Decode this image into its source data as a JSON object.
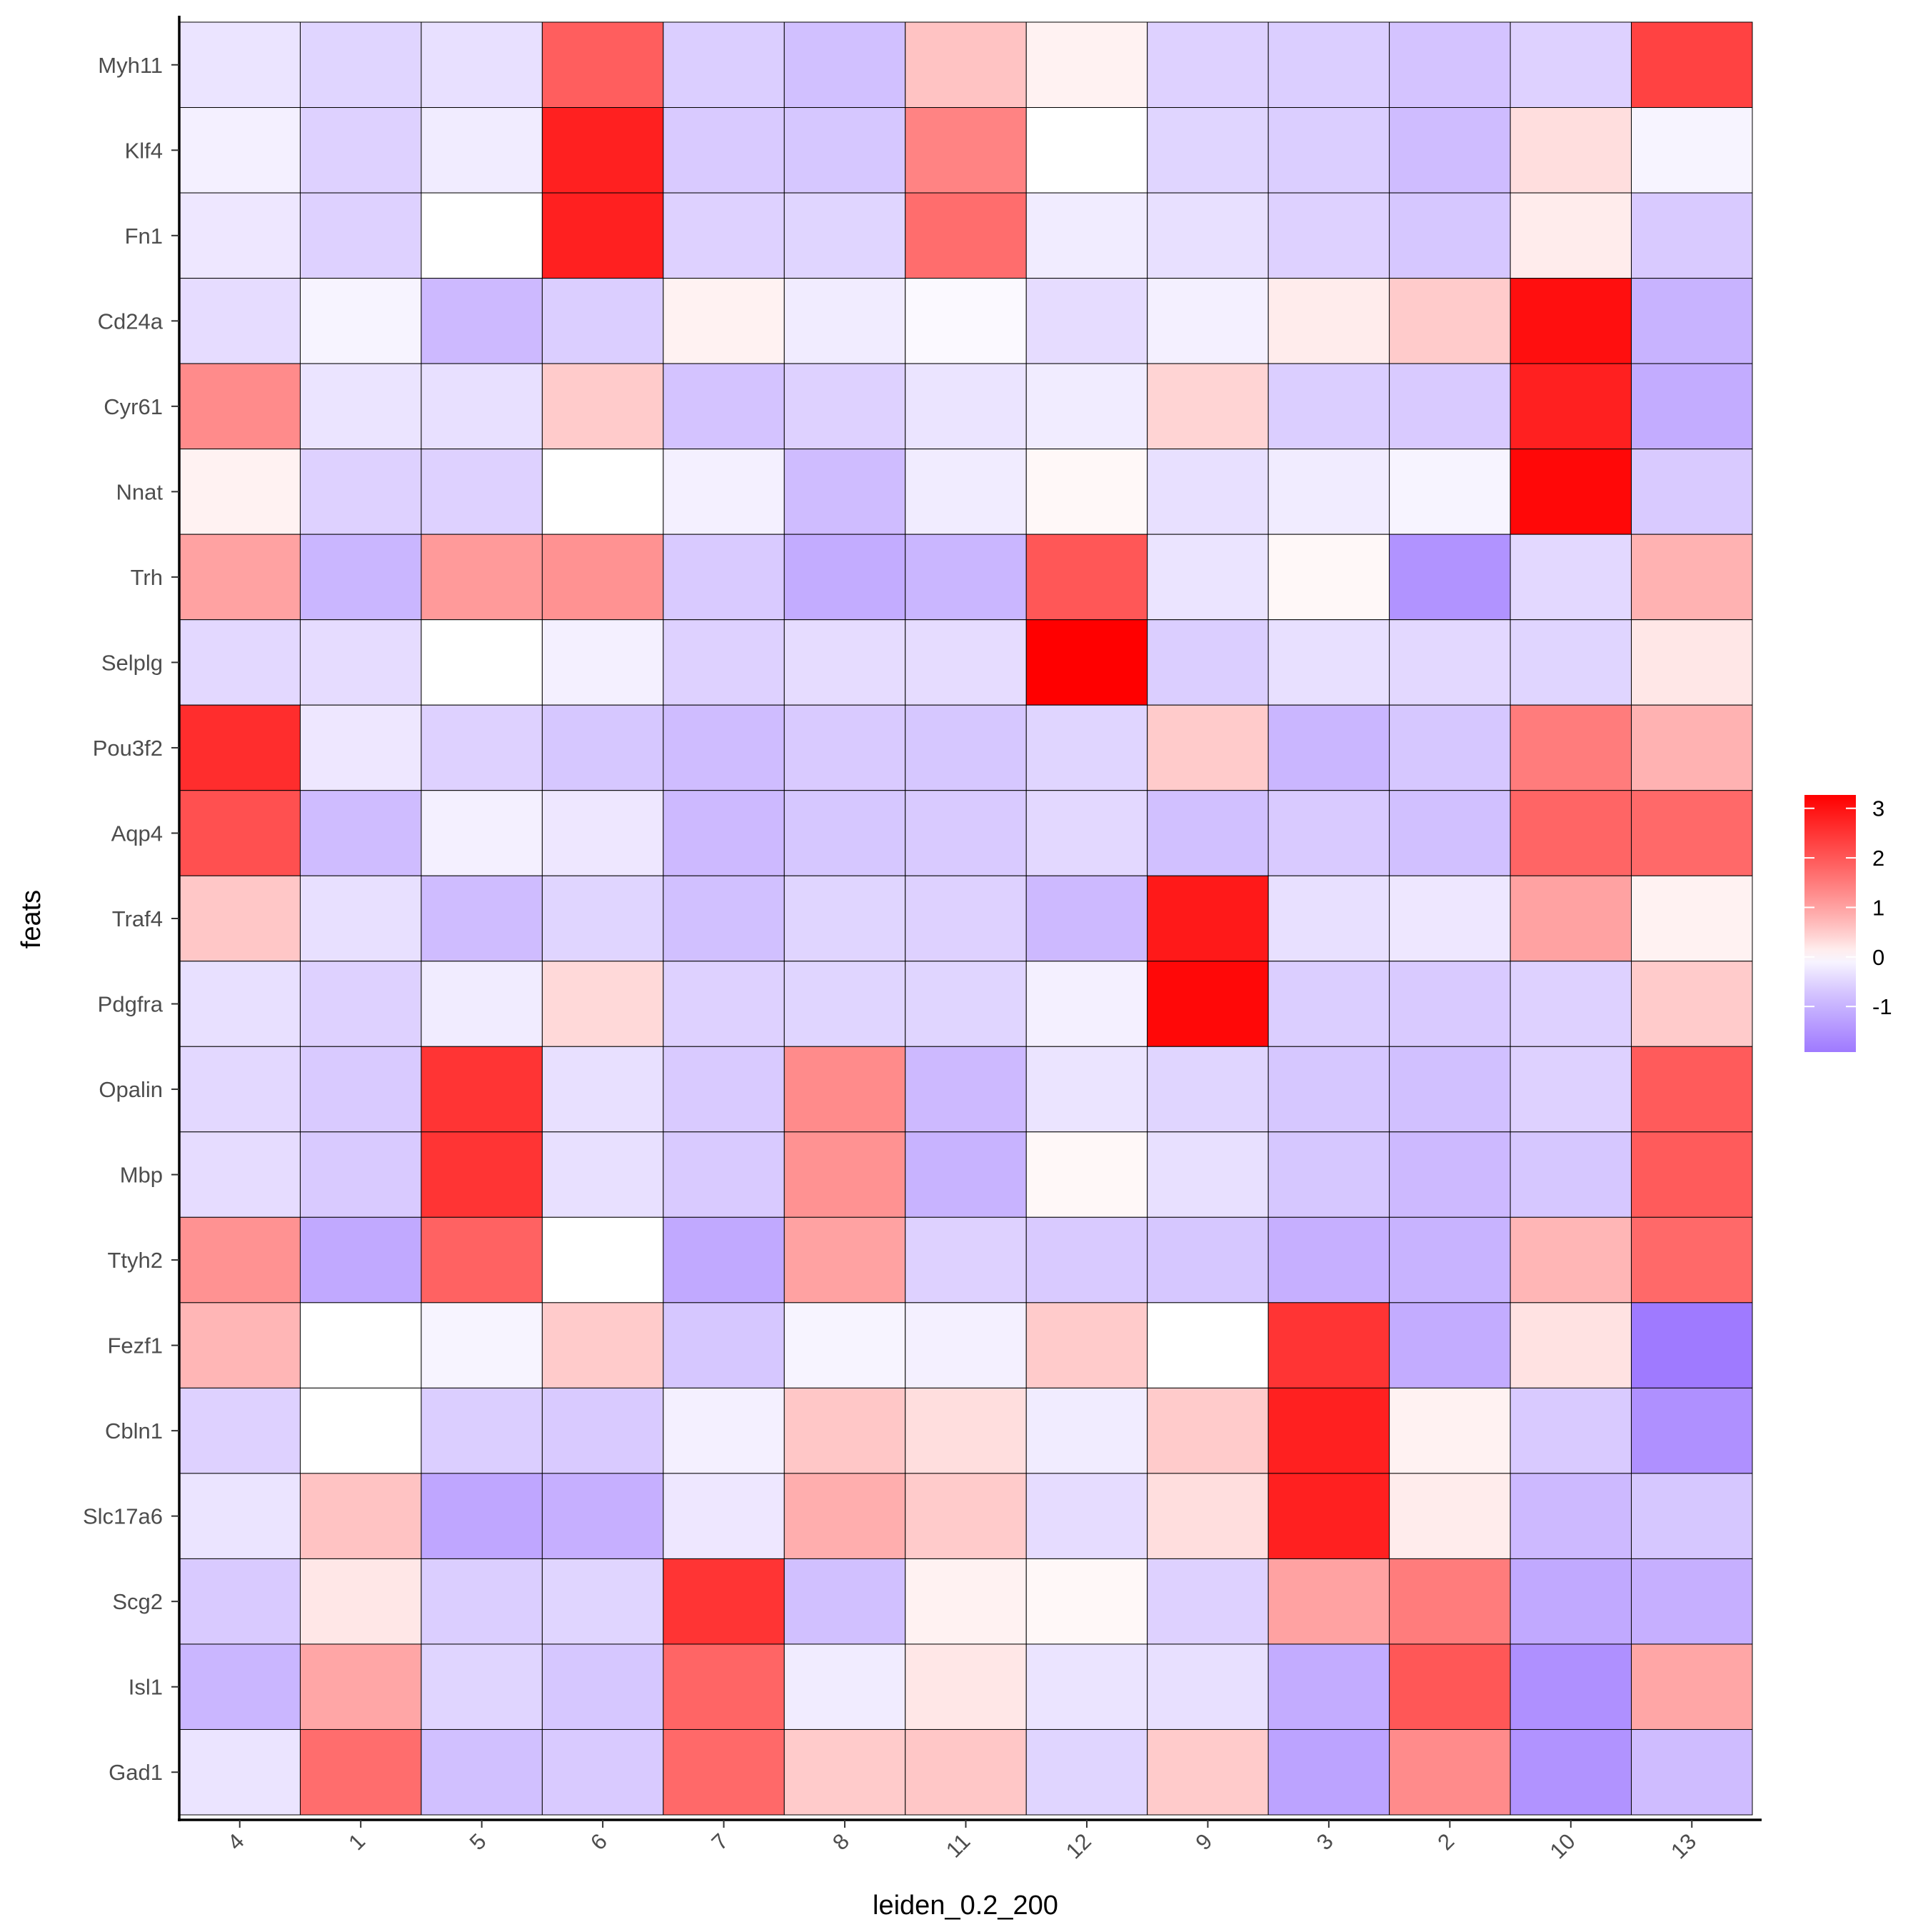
{
  "chart_data": {
    "type": "heatmap",
    "title": "",
    "xlabel": "leiden_0.2_200",
    "ylabel": "feats",
    "columns": [
      "4",
      "1",
      "5",
      "6",
      "7",
      "8",
      "11",
      "12",
      "9",
      "3",
      "2",
      "10",
      "13"
    ],
    "rows": [
      "Myh11",
      "Klf4",
      "Fn1",
      "Cd24a",
      "Cyr61",
      "Nnat",
      "Trh",
      "Selplg",
      "Pou3f2",
      "Aqp4",
      "Traf4",
      "Pdgfra",
      "Opalin",
      "Mbp",
      "Ttyh2",
      "Fezf1",
      "Cbln1",
      "Slc17a6",
      "Scg2",
      "Isl1",
      "Gad1"
    ],
    "values": [
      [
        -0.3,
        -0.5,
        -0.35,
        1.9,
        -0.6,
        -0.8,
        0.6,
        0.1,
        -0.55,
        -0.6,
        -0.75,
        -0.55,
        2.3
      ],
      [
        -0.15,
        -0.55,
        -0.2,
        2.8,
        -0.65,
        -0.7,
        1.4,
        0.0,
        -0.5,
        -0.6,
        -0.85,
        0.3,
        -0.1
      ],
      [
        -0.25,
        -0.55,
        0.0,
        2.8,
        -0.55,
        -0.5,
        1.7,
        -0.2,
        -0.35,
        -0.55,
        -0.7,
        0.15,
        -0.65
      ],
      [
        -0.4,
        -0.1,
        -0.9,
        -0.6,
        0.1,
        -0.2,
        -0.05,
        -0.4,
        -0.15,
        0.15,
        0.5,
        3.05,
        -1.0
      ],
      [
        1.3,
        -0.3,
        -0.35,
        0.5,
        -0.75,
        -0.55,
        -0.3,
        -0.2,
        0.4,
        -0.6,
        -0.65,
        2.8,
        -1.1
      ],
      [
        0.1,
        -0.55,
        -0.55,
        0.0,
        -0.15,
        -0.85,
        -0.2,
        0.05,
        -0.35,
        -0.2,
        -0.1,
        3.15,
        -0.65
      ],
      [
        1.0,
        -0.95,
        1.1,
        1.2,
        -0.65,
        -1.1,
        -0.95,
        2.0,
        -0.3,
        0.05,
        -1.5,
        -0.45,
        0.8
      ],
      [
        -0.45,
        -0.4,
        0.0,
        -0.15,
        -0.55,
        -0.4,
        -0.4,
        3.27,
        -0.6,
        -0.35,
        -0.45,
        -0.5,
        0.2
      ],
      [
        2.6,
        -0.25,
        -0.55,
        -0.7,
        -0.85,
        -0.65,
        -0.7,
        -0.5,
        0.5,
        -0.95,
        -0.7,
        1.5,
        0.8
      ],
      [
        2.1,
        -0.85,
        -0.15,
        -0.25,
        -0.9,
        -0.7,
        -0.65,
        -0.45,
        -0.8,
        -0.65,
        -0.8,
        1.8,
        1.75
      ],
      [
        0.55,
        -0.35,
        -0.85,
        -0.5,
        -0.8,
        -0.5,
        -0.55,
        -0.9,
        2.9,
        -0.35,
        -0.25,
        1.0,
        0.1
      ],
      [
        -0.35,
        -0.55,
        -0.2,
        0.35,
        -0.55,
        -0.5,
        -0.5,
        -0.15,
        3.15,
        -0.6,
        -0.65,
        -0.55,
        0.5
      ],
      [
        -0.45,
        -0.65,
        2.5,
        -0.35,
        -0.65,
        1.3,
        -0.9,
        -0.3,
        -0.5,
        -0.7,
        -0.8,
        -0.55,
        1.95
      ],
      [
        -0.4,
        -0.65,
        2.5,
        -0.35,
        -0.65,
        1.2,
        -1.0,
        0.05,
        -0.35,
        -0.7,
        -0.9,
        -0.7,
        1.95
      ],
      [
        1.2,
        -1.15,
        1.85,
        0.0,
        -1.15,
        1.0,
        -0.55,
        -0.65,
        -0.7,
        -1.05,
        -1.0,
        0.75,
        1.75
      ],
      [
        0.75,
        0.0,
        -0.1,
        0.5,
        -0.7,
        -0.1,
        -0.15,
        0.5,
        0.0,
        2.5,
        -1.1,
        0.25,
        -1.92
      ],
      [
        -0.55,
        0.0,
        -0.6,
        -0.65,
        -0.15,
        0.55,
        0.3,
        -0.2,
        0.5,
        2.8,
        0.1,
        -0.65,
        -1.55
      ],
      [
        -0.3,
        0.6,
        -1.2,
        -1.05,
        -0.25,
        0.85,
        0.5,
        -0.4,
        0.3,
        2.8,
        0.15,
        -0.9,
        -0.7
      ],
      [
        -0.65,
        0.2,
        -0.6,
        -0.5,
        2.5,
        -0.8,
        0.1,
        0.05,
        -0.55,
        1.0,
        1.5,
        -1.15,
        -1.05
      ],
      [
        -0.95,
        0.95,
        -0.5,
        -0.7,
        1.8,
        -0.2,
        0.2,
        -0.3,
        -0.35,
        -1.1,
        2.0,
        -1.55,
        0.95
      ],
      [
        -0.3,
        1.7,
        -0.8,
        -0.65,
        1.75,
        0.5,
        0.55,
        -0.5,
        0.5,
        -1.25,
        1.3,
        -1.5,
        -0.85
      ]
    ],
    "color_scale": {
      "low": "#9F7AFF",
      "mid": "#FFFFFF",
      "high": "#FF0000",
      "range": [
        -1.92,
        3.27
      ]
    },
    "legend": {
      "ticks": [
        "3",
        "2",
        "1",
        "0",
        "-1"
      ],
      "tick_values": [
        3,
        2,
        1,
        0,
        -1
      ],
      "placement": "right"
    },
    "grid": false
  }
}
